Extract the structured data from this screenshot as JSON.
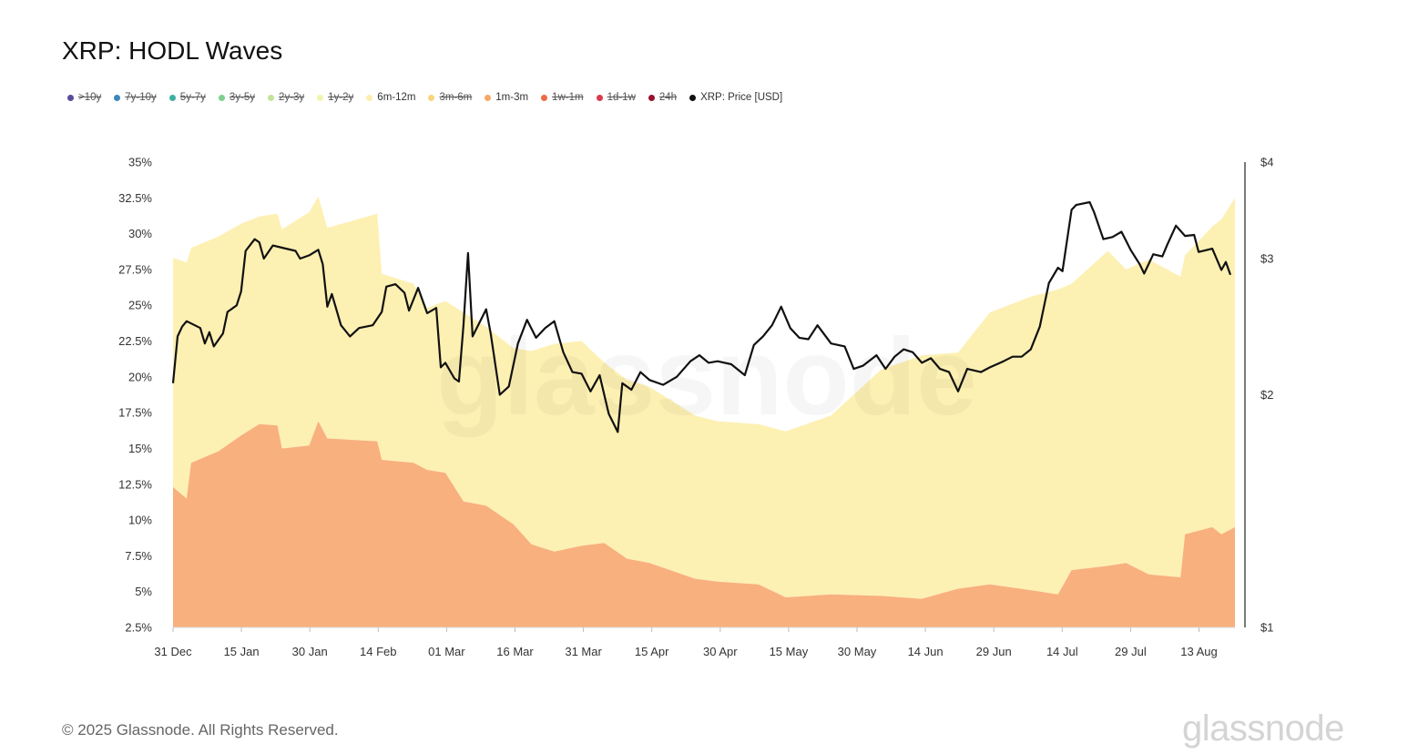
{
  "title": "XRP: HODL Waves",
  "legend": [
    {
      "label": ">10y",
      "color": "#5b4a9e",
      "enabled": false
    },
    {
      "label": "7y-10y",
      "color": "#3a88b8",
      "enabled": false
    },
    {
      "label": "5y-7y",
      "color": "#3fb0a0",
      "enabled": false
    },
    {
      "label": "3y-5y",
      "color": "#7fcf8f",
      "enabled": false
    },
    {
      "label": "2y-3y",
      "color": "#c4e39a",
      "enabled": false
    },
    {
      "label": "1y-2y",
      "color": "#f1f4b0",
      "enabled": false
    },
    {
      "label": "6m-12m",
      "color": "#fdeeb0",
      "enabled": true
    },
    {
      "label": "3m-6m",
      "color": "#f9d57e",
      "enabled": false
    },
    {
      "label": "1m-3m",
      "color": "#f7a866",
      "enabled": true
    },
    {
      "label": "1w-1m",
      "color": "#ee6a45",
      "enabled": false
    },
    {
      "label": "1d-1w",
      "color": "#d83a4f",
      "enabled": false
    },
    {
      "label": "24h",
      "color": "#9a0f2c",
      "enabled": false
    },
    {
      "label": "XRP: Price [USD]",
      "color": "#111111",
      "enabled": true
    }
  ],
  "chart_data": {
    "type": "area",
    "x_range": [
      "2024-12-31",
      "2025-08-22"
    ],
    "x_ticks": [
      "31 Dec",
      "15 Jan",
      "30 Jan",
      "14 Feb",
      "01 Mar",
      "16 Mar",
      "31 Mar",
      "15 Apr",
      "30 Apr",
      "15 May",
      "30 May",
      "14 Jun",
      "29 Jun",
      "14 Jul",
      "29 Jul",
      "13 Aug"
    ],
    "y_left_ticks": [
      "2.5%",
      "5%",
      "7.5%",
      "10%",
      "12.5%",
      "15%",
      "17.5%",
      "20%",
      "22.5%",
      "25%",
      "27.5%",
      "30%",
      "32.5%",
      "35%"
    ],
    "y_left_range": [
      2.5,
      35
    ],
    "y_right_ticks": [
      "$1",
      "$2",
      "$3",
      "$4"
    ],
    "y_right_range": [
      1,
      4
    ],
    "y_right_scale": "log",
    "colors": {
      "m1_3": "#f8b07e",
      "m6_12": "#fdf0b3",
      "price": "#111111"
    },
    "series": [
      {
        "name": "1m-3m",
        "points": [
          [
            "2024-12-31",
            12.3
          ],
          [
            "2025-01-03",
            11.5
          ],
          [
            "2025-01-04",
            14.0
          ],
          [
            "2025-01-10",
            14.8
          ],
          [
            "2025-01-15",
            15.9
          ],
          [
            "2025-01-19",
            16.7
          ],
          [
            "2025-01-23",
            16.6
          ],
          [
            "2025-01-24",
            15.0
          ],
          [
            "2025-01-30",
            15.2
          ],
          [
            "2025-02-01",
            16.9
          ],
          [
            "2025-02-03",
            15.7
          ],
          [
            "2025-02-14",
            15.5
          ],
          [
            "2025-02-15",
            14.2
          ],
          [
            "2025-02-22",
            14.0
          ],
          [
            "2025-02-25",
            13.5
          ],
          [
            "2025-03-01",
            13.3
          ],
          [
            "2025-03-05",
            11.3
          ],
          [
            "2025-03-10",
            11.0
          ],
          [
            "2025-03-16",
            9.7
          ],
          [
            "2025-03-20",
            8.3
          ],
          [
            "2025-03-25",
            7.8
          ],
          [
            "2025-03-31",
            8.2
          ],
          [
            "2025-04-05",
            8.4
          ],
          [
            "2025-04-10",
            7.3
          ],
          [
            "2025-04-15",
            7.0
          ],
          [
            "2025-04-25",
            5.9
          ],
          [
            "2025-04-30",
            5.7
          ],
          [
            "2025-05-09",
            5.5
          ],
          [
            "2025-05-15",
            4.6
          ],
          [
            "2025-05-25",
            4.8
          ],
          [
            "2025-06-05",
            4.7
          ],
          [
            "2025-06-14",
            4.5
          ],
          [
            "2025-06-22",
            5.2
          ],
          [
            "2025-06-29",
            5.5
          ],
          [
            "2025-07-08",
            5.1
          ],
          [
            "2025-07-14",
            4.8
          ],
          [
            "2025-07-17",
            6.5
          ],
          [
            "2025-07-25",
            6.8
          ],
          [
            "2025-07-29",
            7.0
          ],
          [
            "2025-08-03",
            6.2
          ],
          [
            "2025-08-10",
            6.0
          ],
          [
            "2025-08-11",
            9.0
          ],
          [
            "2025-08-17",
            9.5
          ],
          [
            "2025-08-19",
            9.0
          ],
          [
            "2025-08-22",
            9.5
          ]
        ]
      },
      {
        "name": "6m-12m",
        "points": [
          [
            "2024-12-31",
            16.0
          ],
          [
            "2025-01-03",
            16.5
          ],
          [
            "2025-01-04",
            15.0
          ],
          [
            "2025-01-10",
            15.0
          ],
          [
            "2025-01-15",
            14.8
          ],
          [
            "2025-01-19",
            14.5
          ],
          [
            "2025-01-23",
            14.8
          ],
          [
            "2025-01-24",
            15.3
          ],
          [
            "2025-01-30",
            16.3
          ],
          [
            "2025-02-01",
            15.7
          ],
          [
            "2025-02-03",
            14.7
          ],
          [
            "2025-02-14",
            15.9
          ],
          [
            "2025-02-15",
            13.0
          ],
          [
            "2025-02-22",
            12.5
          ],
          [
            "2025-02-25",
            11.3
          ],
          [
            "2025-03-01",
            12.0
          ],
          [
            "2025-03-05",
            13.2
          ],
          [
            "2025-03-10",
            12.5
          ],
          [
            "2025-03-16",
            12.3
          ],
          [
            "2025-03-20",
            13.5
          ],
          [
            "2025-03-25",
            14.5
          ],
          [
            "2025-03-31",
            14.3
          ],
          [
            "2025-04-05",
            12.6
          ],
          [
            "2025-04-10",
            12.5
          ],
          [
            "2025-04-15",
            12.3
          ],
          [
            "2025-04-25",
            11.4
          ],
          [
            "2025-04-30",
            11.2
          ],
          [
            "2025-05-09",
            11.2
          ],
          [
            "2025-05-15",
            11.6
          ],
          [
            "2025-05-25",
            12.5
          ],
          [
            "2025-06-05",
            15.8
          ],
          [
            "2025-06-14",
            17.0
          ],
          [
            "2025-06-22",
            16.5
          ],
          [
            "2025-06-29",
            19.0
          ],
          [
            "2025-07-08",
            20.5
          ],
          [
            "2025-07-14",
            21.3
          ],
          [
            "2025-07-17",
            20.0
          ],
          [
            "2025-07-25",
            22.0
          ],
          [
            "2025-07-29",
            20.5
          ],
          [
            "2025-08-03",
            22.0
          ],
          [
            "2025-08-10",
            21.0
          ],
          [
            "2025-08-11",
            19.5
          ],
          [
            "2025-08-17",
            21.0
          ],
          [
            "2025-08-19",
            22.0
          ],
          [
            "2025-08-22",
            23.0
          ]
        ]
      },
      {
        "name": "XRP: Price [USD]",
        "points": [
          [
            "2024-12-31",
            2.07
          ],
          [
            "2025-01-01",
            2.38
          ],
          [
            "2025-01-02",
            2.45
          ],
          [
            "2025-01-03",
            2.49
          ],
          [
            "2025-01-06",
            2.44
          ],
          [
            "2025-01-07",
            2.33
          ],
          [
            "2025-01-08",
            2.41
          ],
          [
            "2025-01-09",
            2.31
          ],
          [
            "2025-01-11",
            2.4
          ],
          [
            "2025-01-12",
            2.56
          ],
          [
            "2025-01-14",
            2.61
          ],
          [
            "2025-01-15",
            2.72
          ],
          [
            "2025-01-16",
            3.07
          ],
          [
            "2025-01-18",
            3.18
          ],
          [
            "2025-01-19",
            3.15
          ],
          [
            "2025-01-20",
            3.0
          ],
          [
            "2025-01-22",
            3.12
          ],
          [
            "2025-01-24",
            3.1
          ],
          [
            "2025-01-27",
            3.07
          ],
          [
            "2025-01-28",
            3.0
          ],
          [
            "2025-01-30",
            3.03
          ],
          [
            "2025-02-01",
            3.08
          ],
          [
            "2025-02-02",
            2.95
          ],
          [
            "2025-02-03",
            2.6
          ],
          [
            "2025-02-04",
            2.7
          ],
          [
            "2025-02-06",
            2.46
          ],
          [
            "2025-02-08",
            2.38
          ],
          [
            "2025-02-10",
            2.44
          ],
          [
            "2025-02-13",
            2.46
          ],
          [
            "2025-02-15",
            2.56
          ],
          [
            "2025-02-16",
            2.76
          ],
          [
            "2025-02-18",
            2.78
          ],
          [
            "2025-02-20",
            2.71
          ],
          [
            "2025-02-21",
            2.57
          ],
          [
            "2025-02-23",
            2.75
          ],
          [
            "2025-02-25",
            2.55
          ],
          [
            "2025-02-27",
            2.59
          ],
          [
            "2025-02-28",
            2.17
          ],
          [
            "2025-03-01",
            2.2
          ],
          [
            "2025-03-03",
            2.1
          ],
          [
            "2025-03-04",
            2.08
          ],
          [
            "2025-03-05",
            2.46
          ],
          [
            "2025-03-06",
            3.05
          ],
          [
            "2025-03-07",
            2.38
          ],
          [
            "2025-03-10",
            2.58
          ],
          [
            "2025-03-11",
            2.4
          ],
          [
            "2025-03-13",
            2.0
          ],
          [
            "2025-03-15",
            2.05
          ],
          [
            "2025-03-17",
            2.33
          ],
          [
            "2025-03-19",
            2.5
          ],
          [
            "2025-03-21",
            2.37
          ],
          [
            "2025-03-23",
            2.44
          ],
          [
            "2025-03-25",
            2.49
          ],
          [
            "2025-03-27",
            2.27
          ],
          [
            "2025-03-29",
            2.14
          ],
          [
            "2025-03-31",
            2.13
          ],
          [
            "2025-04-02",
            2.02
          ],
          [
            "2025-04-04",
            2.12
          ],
          [
            "2025-04-06",
            1.89
          ],
          [
            "2025-04-08",
            1.79
          ],
          [
            "2025-04-09",
            2.07
          ],
          [
            "2025-04-11",
            2.03
          ],
          [
            "2025-04-13",
            2.14
          ],
          [
            "2025-04-15",
            2.09
          ],
          [
            "2025-04-18",
            2.06
          ],
          [
            "2025-04-21",
            2.11
          ],
          [
            "2025-04-24",
            2.21
          ],
          [
            "2025-04-26",
            2.25
          ],
          [
            "2025-04-28",
            2.2
          ],
          [
            "2025-04-30",
            2.21
          ],
          [
            "2025-05-03",
            2.19
          ],
          [
            "2025-05-06",
            2.12
          ],
          [
            "2025-05-08",
            2.32
          ],
          [
            "2025-05-10",
            2.38
          ],
          [
            "2025-05-12",
            2.46
          ],
          [
            "2025-05-14",
            2.6
          ],
          [
            "2025-05-16",
            2.44
          ],
          [
            "2025-05-18",
            2.37
          ],
          [
            "2025-05-20",
            2.36
          ],
          [
            "2025-05-22",
            2.46
          ],
          [
            "2025-05-25",
            2.33
          ],
          [
            "2025-05-28",
            2.31
          ],
          [
            "2025-05-30",
            2.16
          ],
          [
            "2025-06-01",
            2.18
          ],
          [
            "2025-06-04",
            2.25
          ],
          [
            "2025-06-06",
            2.16
          ],
          [
            "2025-06-08",
            2.24
          ],
          [
            "2025-06-10",
            2.29
          ],
          [
            "2025-06-12",
            2.27
          ],
          [
            "2025-06-14",
            2.2
          ],
          [
            "2025-06-16",
            2.23
          ],
          [
            "2025-06-18",
            2.16
          ],
          [
            "2025-06-20",
            2.14
          ],
          [
            "2025-06-22",
            2.02
          ],
          [
            "2025-06-24",
            2.16
          ],
          [
            "2025-06-27",
            2.14
          ],
          [
            "2025-06-29",
            2.17
          ],
          [
            "2025-07-02",
            2.21
          ],
          [
            "2025-07-04",
            2.24
          ],
          [
            "2025-07-06",
            2.24
          ],
          [
            "2025-07-08",
            2.29
          ],
          [
            "2025-07-10",
            2.45
          ],
          [
            "2025-07-12",
            2.79
          ],
          [
            "2025-07-14",
            2.92
          ],
          [
            "2025-07-15",
            2.89
          ],
          [
            "2025-07-17",
            3.47
          ],
          [
            "2025-07-18",
            3.52
          ],
          [
            "2025-07-21",
            3.55
          ],
          [
            "2025-07-22",
            3.44
          ],
          [
            "2025-07-24",
            3.18
          ],
          [
            "2025-07-26",
            3.2
          ],
          [
            "2025-07-28",
            3.25
          ],
          [
            "2025-07-30",
            3.08
          ],
          [
            "2025-08-01",
            2.95
          ],
          [
            "2025-08-02",
            2.87
          ],
          [
            "2025-08-04",
            3.04
          ],
          [
            "2025-08-06",
            3.02
          ],
          [
            "2025-08-07",
            3.12
          ],
          [
            "2025-08-09",
            3.31
          ],
          [
            "2025-08-11",
            3.21
          ],
          [
            "2025-08-13",
            3.22
          ],
          [
            "2025-08-14",
            3.06
          ],
          [
            "2025-08-17",
            3.09
          ],
          [
            "2025-08-19",
            2.9
          ],
          [
            "2025-08-20",
            2.97
          ],
          [
            "2025-08-21",
            2.86
          ]
        ]
      }
    ]
  },
  "watermark": "glassnode",
  "footer": "© 2025 Glassnode. All Rights Reserved.",
  "brand": "glassnode"
}
